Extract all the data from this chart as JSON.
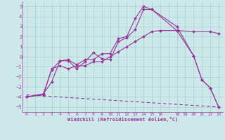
{
  "xlabel": "Windchill (Refroidissement éolien,°C)",
  "background_color": "#cde8e8",
  "grid_color": "#aad4d4",
  "line_color": "#993399",
  "xlim": [
    -0.5,
    23.5
  ],
  "ylim": [
    -5.5,
    5.5
  ],
  "xtick_labels": [
    "0",
    "1",
    "2",
    "3",
    "4",
    "5",
    "6",
    "7",
    "8",
    "9",
    "10",
    "11",
    "12",
    "13",
    "14",
    "15",
    "16",
    "",
    "18",
    "19",
    "20",
    "21",
    "22",
    "23"
  ],
  "xtick_positions": [
    0,
    1,
    2,
    3,
    4,
    5,
    6,
    7,
    8,
    9,
    10,
    11,
    12,
    13,
    14,
    15,
    16,
    17,
    18,
    19,
    20,
    21,
    22,
    23
  ],
  "yticks": [
    -5,
    -4,
    -3,
    -2,
    -1,
    0,
    1,
    2,
    3,
    4,
    5
  ],
  "lines": [
    {
      "x": [
        0,
        2,
        3,
        4,
        5,
        6,
        7,
        8,
        9,
        10,
        11,
        12,
        13,
        14,
        15,
        18,
        20,
        21,
        22,
        23
      ],
      "y": [
        -4.0,
        -3.7,
        -2.5,
        -0.4,
        -0.3,
        -0.8,
        -0.3,
        -0.3,
        0.3,
        0.3,
        1.8,
        2.0,
        3.8,
        5.0,
        4.7,
        3.0,
        0.1,
        -2.3,
        -3.1,
        -5.0
      ],
      "marker": true
    },
    {
      "x": [
        0,
        2,
        3,
        4,
        5,
        6,
        7,
        8,
        9,
        10,
        11,
        12,
        13,
        14,
        15,
        18,
        20,
        21,
        22,
        23
      ],
      "y": [
        -4.0,
        -3.7,
        -1.3,
        -0.4,
        -0.4,
        -1.2,
        -0.5,
        0.4,
        -0.2,
        -0.3,
        1.5,
        1.9,
        2.7,
        4.7,
        4.7,
        2.6,
        0.1,
        -2.3,
        -3.1,
        -5.0
      ],
      "marker": true
    },
    {
      "x": [
        0,
        2,
        3,
        4,
        5,
        6,
        7,
        8,
        9,
        10,
        11,
        12,
        13,
        14,
        15,
        16,
        18,
        20,
        22,
        23
      ],
      "y": [
        -4.0,
        -3.8,
        -1.2,
        -0.9,
        -1.2,
        -0.9,
        -0.9,
        -0.5,
        -0.5,
        0.0,
        0.5,
        1.0,
        1.5,
        2.0,
        2.5,
        2.6,
        2.6,
        2.5,
        2.5,
        2.3
      ],
      "marker": true
    },
    {
      "x": [
        0,
        23
      ],
      "y": [
        -3.8,
        -5.0
      ],
      "marker": false
    }
  ]
}
